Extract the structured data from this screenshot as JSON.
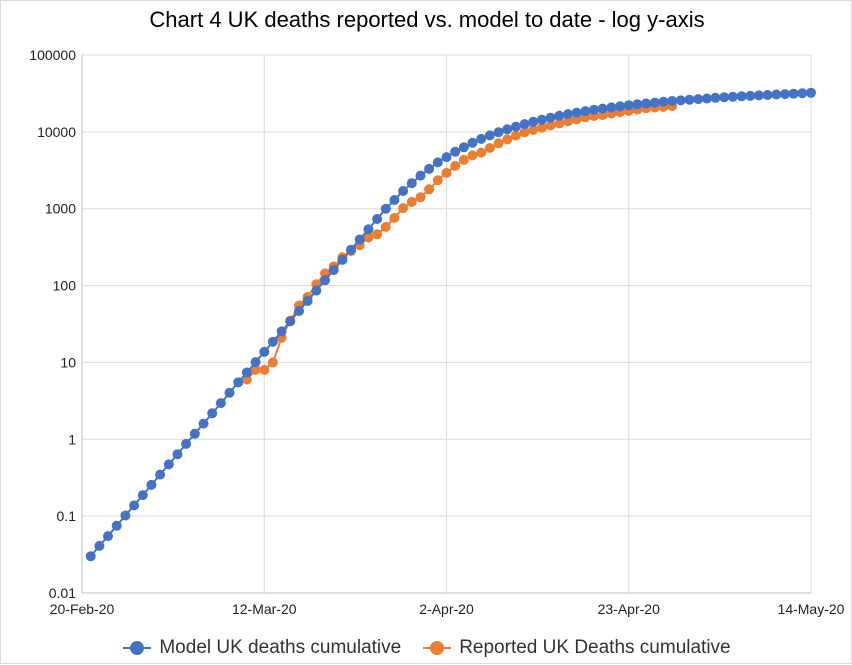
{
  "chart_data": {
    "type": "line",
    "title": "Chart 4 UK deaths reported vs. model to date - log y-axis",
    "xlabel": "",
    "ylabel": "",
    "yscale": "log",
    "ylim": [
      0.01,
      100000
    ],
    "y_ticks": [
      0.01,
      0.1,
      1,
      10,
      100,
      1000,
      10000,
      100000
    ],
    "y_tick_labels": [
      "0.01",
      "0.1",
      "1",
      "10",
      "100",
      "1000",
      "10000",
      "100000"
    ],
    "xlim": [
      "2020-02-20",
      "2020-05-14"
    ],
    "x_ticks": [
      "2020-02-20",
      "2020-03-12",
      "2020-04-02",
      "2020-04-23",
      "2020-05-14"
    ],
    "x_tick_labels": [
      "20-Feb-20",
      "12-Mar-20",
      "2-Apr-20",
      "23-Apr-20",
      "14-May-20"
    ],
    "grid": true,
    "legend_position": "bottom",
    "series": [
      {
        "name": "Model UK deaths cumulative",
        "color": "#4472c4",
        "points": [
          [
            "2020-02-21",
            0.03
          ],
          [
            "2020-02-22",
            0.041
          ],
          [
            "2020-02-23",
            0.055
          ],
          [
            "2020-02-24",
            0.075
          ],
          [
            "2020-02-25",
            0.102
          ],
          [
            "2020-02-26",
            0.138
          ],
          [
            "2020-02-27",
            0.188
          ],
          [
            "2020-02-28",
            0.255
          ],
          [
            "2020-02-29",
            0.347
          ],
          [
            "2020-03-01",
            0.471
          ],
          [
            "2020-03-02",
            0.64
          ],
          [
            "2020-03-03",
            0.87
          ],
          [
            "2020-03-04",
            1.18
          ],
          [
            "2020-03-05",
            1.6
          ],
          [
            "2020-03-06",
            2.18
          ],
          [
            "2020-03-07",
            2.96
          ],
          [
            "2020-03-08",
            4.02
          ],
          [
            "2020-03-09",
            5.5
          ],
          [
            "2020-03-10",
            7.4
          ],
          [
            "2020-03-11",
            10.1
          ],
          [
            "2020-03-12",
            13.7
          ],
          [
            "2020-03-13",
            18.6
          ],
          [
            "2020-03-14",
            25.3
          ],
          [
            "2020-03-15",
            34.4
          ],
          [
            "2020-03-16",
            46.7
          ],
          [
            "2020-03-17",
            63
          ],
          [
            "2020-03-18",
            86
          ],
          [
            "2020-03-19",
            117
          ],
          [
            "2020-03-20",
            159
          ],
          [
            "2020-03-21",
            216
          ],
          [
            "2020-03-22",
            293
          ],
          [
            "2020-03-23",
            398
          ],
          [
            "2020-03-24",
            540
          ],
          [
            "2020-03-25",
            734
          ],
          [
            "2020-03-26",
            997
          ],
          [
            "2020-03-27",
            1300
          ],
          [
            "2020-03-28",
            1700
          ],
          [
            "2020-03-29",
            2150
          ],
          [
            "2020-03-30",
            2700
          ],
          [
            "2020-03-31",
            3300
          ],
          [
            "2020-04-01",
            4000
          ],
          [
            "2020-04-02",
            4700
          ],
          [
            "2020-04-03",
            5500
          ],
          [
            "2020-04-04",
            6300
          ],
          [
            "2020-04-05",
            7200
          ],
          [
            "2020-04-06",
            8100
          ],
          [
            "2020-04-07",
            9000
          ],
          [
            "2020-04-08",
            9900
          ],
          [
            "2020-04-09",
            10800
          ],
          [
            "2020-04-10",
            11700
          ],
          [
            "2020-04-11",
            12600
          ],
          [
            "2020-04-12",
            13500
          ],
          [
            "2020-04-13",
            14400
          ],
          [
            "2020-04-14",
            15300
          ],
          [
            "2020-04-15",
            16200
          ],
          [
            "2020-04-16",
            17000
          ],
          [
            "2020-04-17",
            17800
          ],
          [
            "2020-04-18",
            18600
          ],
          [
            "2020-04-19",
            19400
          ],
          [
            "2020-04-20",
            20100
          ],
          [
            "2020-04-21",
            20800
          ],
          [
            "2020-04-22",
            21500
          ],
          [
            "2020-04-23",
            22200
          ],
          [
            "2020-04-24",
            22800
          ],
          [
            "2020-04-25",
            23400
          ],
          [
            "2020-04-26",
            24000
          ],
          [
            "2020-04-27",
            24600
          ],
          [
            "2020-04-28",
            25200
          ],
          [
            "2020-04-29",
            25700
          ],
          [
            "2020-04-30",
            26200
          ],
          [
            "2020-05-01",
            26700
          ],
          [
            "2020-05-02",
            27200
          ],
          [
            "2020-05-03",
            27700
          ],
          [
            "2020-05-04",
            28200
          ],
          [
            "2020-05-05",
            28600
          ],
          [
            "2020-05-06",
            29000
          ],
          [
            "2020-05-07",
            29400
          ],
          [
            "2020-05-08",
            29800
          ],
          [
            "2020-05-09",
            30200
          ],
          [
            "2020-05-10",
            30600
          ],
          [
            "2020-05-11",
            31000
          ],
          [
            "2020-05-12",
            31400
          ],
          [
            "2020-05-13",
            31800
          ],
          [
            "2020-05-14",
            32200
          ]
        ]
      },
      {
        "name": "Reported UK Deaths cumulative",
        "color": "#ed7d31",
        "points": [
          [
            "2020-03-10",
            6
          ],
          [
            "2020-03-11",
            8
          ],
          [
            "2020-03-12",
            8
          ],
          [
            "2020-03-13",
            10
          ],
          [
            "2020-03-14",
            21
          ],
          [
            "2020-03-15",
            35
          ],
          [
            "2020-03-16",
            55
          ],
          [
            "2020-03-17",
            71
          ],
          [
            "2020-03-18",
            104
          ],
          [
            "2020-03-19",
            144
          ],
          [
            "2020-03-20",
            177
          ],
          [
            "2020-03-21",
            233
          ],
          [
            "2020-03-22",
            281
          ],
          [
            "2020-03-23",
            335
          ],
          [
            "2020-03-24",
            422
          ],
          [
            "2020-03-25",
            465
          ],
          [
            "2020-03-26",
            578
          ],
          [
            "2020-03-27",
            759
          ],
          [
            "2020-03-28",
            1019
          ],
          [
            "2020-03-29",
            1228
          ],
          [
            "2020-03-30",
            1408
          ],
          [
            "2020-03-31",
            1789
          ],
          [
            "2020-04-01",
            2352
          ],
          [
            "2020-04-02",
            2921
          ],
          [
            "2020-04-03",
            3605
          ],
          [
            "2020-04-04",
            4313
          ],
          [
            "2020-04-05",
            4934
          ],
          [
            "2020-04-06",
            5373
          ],
          [
            "2020-04-07",
            6159
          ],
          [
            "2020-04-08",
            7097
          ],
          [
            "2020-04-09",
            7978
          ],
          [
            "2020-04-10",
            8958
          ],
          [
            "2020-04-11",
            9875
          ],
          [
            "2020-04-12",
            10612
          ],
          [
            "2020-04-13",
            11329
          ],
          [
            "2020-04-14",
            12107
          ],
          [
            "2020-04-15",
            12868
          ],
          [
            "2020-04-16",
            13729
          ],
          [
            "2020-04-17",
            14576
          ],
          [
            "2020-04-18",
            15464
          ],
          [
            "2020-04-19",
            16060
          ],
          [
            "2020-04-20",
            16509
          ],
          [
            "2020-04-21",
            17337
          ],
          [
            "2020-04-22",
            18100
          ],
          [
            "2020-04-23",
            18738
          ],
          [
            "2020-04-24",
            19506
          ],
          [
            "2020-04-25",
            20319
          ],
          [
            "2020-04-26",
            20732
          ],
          [
            "2020-04-27",
            21092
          ],
          [
            "2020-04-28",
            21678
          ]
        ]
      }
    ]
  }
}
